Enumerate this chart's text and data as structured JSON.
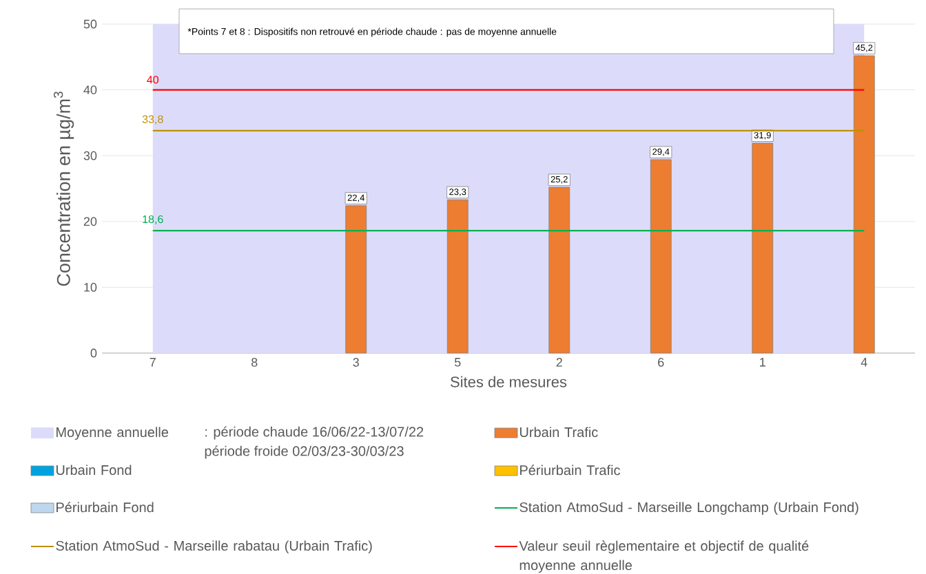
{
  "chart_data": {
    "type": "bar",
    "xlabel": "Sites de mesures",
    "ylabel": "Concentration en µg/m$^{3}$",
    "categories": [
      "7",
      "8",
      "3",
      "5",
      "2",
      "6",
      "1",
      "4"
    ],
    "ylim": [
      0,
      50
    ],
    "yticks": [
      0,
      10,
      20,
      30,
      40,
      50
    ],
    "grid": "y",
    "legend": "bottom",
    "annotations": [
      "*Points 7 et 8 : Dispositifs non retrouvé en période chaude : pas de moyenne annuelle",
      ": période chaude  16/06/22-13/07/22",
      "période froide 02/03/23-30/03/23"
    ],
    "bands": [
      {
        "axis": "x",
        "from": "7",
        "to": "4",
        "label": "Moyenne annuelle",
        "color": "#dcdcfa"
      }
    ],
    "series": [
      {
        "name": "Urbain Trafic",
        "color": "#ed7d31",
        "values": [
          null,
          null,
          22.4,
          23.3,
          25.2,
          29.4,
          31.9,
          45.2
        ],
        "value_labels": [
          null,
          null,
          "22,4",
          "23,3",
          "25,2",
          "29,4",
          "31,9",
          "45,2"
        ]
      },
      {
        "name": "Urbain Fond",
        "color": "#00a3e0",
        "values": [
          null,
          null,
          null,
          null,
          null,
          null,
          null,
          null
        ]
      },
      {
        "name": "Périurbain Trafic",
        "color": "#ffc000",
        "values": [
          null,
          null,
          null,
          null,
          null,
          null,
          null,
          null
        ]
      },
      {
        "name": "Périurbain Fond",
        "color": "#bdd7ee",
        "values": [
          null,
          null,
          null,
          null,
          null,
          null,
          null,
          null
        ]
      },
      {
        "name": "Station AtmoSud - Marseille Longchamp (Urbain Fond)",
        "type": "line",
        "color": "#00b050",
        "values": [
          18.6,
          18.6,
          18.6,
          18.6,
          18.6,
          18.6,
          18.6,
          18.6
        ],
        "value_labels": [
          "18,6",
          null,
          null,
          null,
          null,
          null,
          null,
          null
        ]
      },
      {
        "name": "Station AtmoSud - Marseille rabatau (Urbain Trafic)",
        "type": "line",
        "color": "#bf9000",
        "values": [
          33.8,
          33.8,
          33.8,
          33.8,
          33.8,
          33.8,
          33.8,
          33.8
        ],
        "value_labels": [
          "33,8",
          null,
          null,
          null,
          null,
          null,
          null,
          null
        ]
      },
      {
        "name": "Valeur seuil règlementaire et objectif de qualité moyenne annuelle",
        "type": "line",
        "color": "#ff0000",
        "values": [
          40,
          40,
          40,
          40,
          40,
          40,
          40,
          40
        ],
        "value_labels": [
          "40",
          null,
          null,
          null,
          null,
          null,
          null,
          null
        ]
      }
    ]
  }
}
